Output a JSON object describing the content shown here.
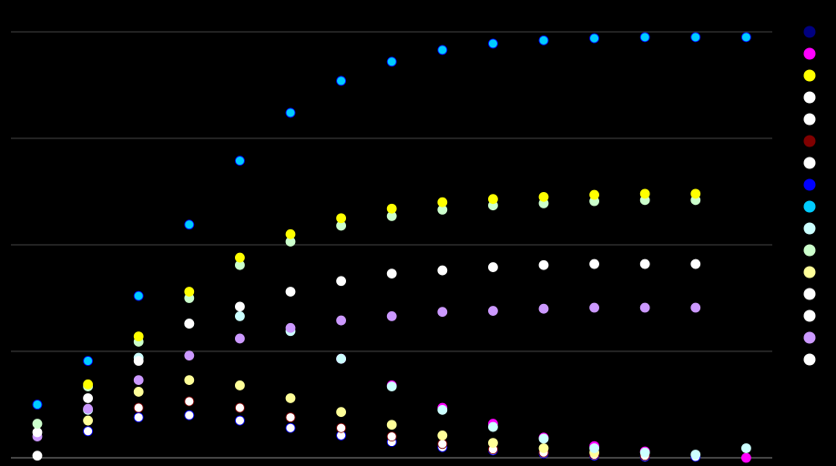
{
  "chart_data": {
    "type": "scatter",
    "title": "",
    "xlabel": "",
    "ylabel": "",
    "x": [
      1,
      2,
      3,
      4,
      5,
      6,
      7,
      8,
      9,
      10,
      11,
      12,
      13,
      14,
      15
    ],
    "ylim": [
      0,
      4
    ],
    "yticks": [
      0,
      1,
      2,
      3,
      4
    ],
    "grid": true,
    "legend_position": "right",
    "legend_colors": [
      "#000080",
      "#ff00ff",
      "#ffff00",
      "#ffffff",
      "#ffffff",
      "#800000",
      "#ffffff",
      "#0000ff",
      "#00ccff",
      "#ccffff",
      "#ccffcc",
      "#ffff99",
      "#ffffff",
      "#ffffff",
      "#cc99ff",
      "#ffffff"
    ],
    "series": [
      {
        "color": "#ffffff",
        "edge": "#0000ff",
        "values": [
          null,
          0.25,
          0.38,
          0.4,
          0.35,
          0.28,
          0.21,
          0.15,
          0.1,
          0.07,
          0.04,
          0.02,
          0.01,
          0.01,
          null
        ]
      },
      {
        "color": "#ffffff",
        "edge": "#800000",
        "values": [
          null,
          null,
          0.47,
          0.53,
          0.47,
          0.38,
          0.28,
          0.2,
          0.13,
          0.08,
          0.05,
          0.03,
          0.02,
          null,
          null
        ]
      },
      {
        "color": "#ffff99",
        "edge": "#ffff99",
        "values": [
          null,
          0.35,
          0.62,
          0.73,
          0.68,
          0.56,
          0.43,
          0.31,
          0.21,
          0.14,
          0.09,
          0.05,
          null,
          null,
          null
        ]
      },
      {
        "color": "#ff00ff",
        "edge": "#ff00ff",
        "values": [
          null,
          null,
          null,
          null,
          null,
          null,
          0.93,
          0.68,
          0.47,
          0.32,
          0.19,
          0.11,
          0.06,
          null,
          0.0
        ]
      },
      {
        "color": "#ccffff",
        "edge": "#ccffff",
        "values": [
          null,
          0.45,
          0.94,
          1.26,
          1.33,
          1.19,
          0.93,
          0.67,
          0.45,
          0.29,
          0.18,
          0.09,
          0.05,
          0.03,
          0.09
        ]
      },
      {
        "color": "#cc99ff",
        "edge": "#cc99ff",
        "values": [
          0.2,
          0.46,
          0.73,
          0.96,
          1.12,
          1.22,
          1.29,
          1.33,
          1.37,
          1.38,
          1.4,
          1.41,
          1.41,
          1.41,
          null
        ]
      },
      {
        "color": "#ffffff",
        "edge": "#ffffff",
        "values": [
          0.24,
          0.56,
          0.91,
          1.26,
          1.42,
          1.56,
          1.66,
          1.73,
          1.76,
          1.79,
          1.81,
          1.82,
          1.82,
          1.82,
          null
        ]
      },
      {
        "color": "#ccffcc",
        "edge": "#ccffcc",
        "values": [
          0.32,
          0.67,
          1.09,
          1.5,
          1.81,
          2.03,
          2.18,
          2.27,
          2.33,
          2.37,
          2.39,
          2.41,
          2.42,
          2.42,
          null
        ]
      },
      {
        "color": "#ffff00",
        "edge": "#ffff00",
        "values": [
          null,
          0.69,
          1.14,
          1.56,
          1.88,
          2.1,
          2.25,
          2.34,
          2.4,
          2.43,
          2.45,
          2.47,
          2.48,
          2.48,
          null
        ]
      },
      {
        "color": "#00ccff",
        "edge": "#0000ff",
        "values": [
          0.5,
          0.91,
          1.52,
          2.19,
          2.79,
          3.24,
          3.54,
          3.72,
          3.83,
          3.89,
          3.92,
          3.94,
          3.95,
          3.95,
          3.95
        ]
      },
      {
        "color": "#ffffff",
        "edge": "#ffffff",
        "values": [
          0.02,
          null,
          null,
          null,
          null,
          null,
          null,
          null,
          null,
          null,
          null,
          null,
          null,
          null,
          null
        ]
      }
    ]
  }
}
